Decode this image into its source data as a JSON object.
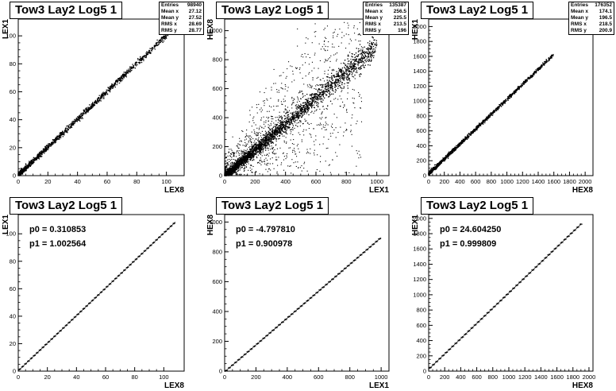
{
  "chart_data": [
    {
      "type": "scatter",
      "title": "Tow3 Lay2 Log5 1",
      "xlabel": "LEX8",
      "ylabel": "LEX1",
      "xlim": [
        0,
        112
      ],
      "ylim": [
        0,
        112
      ],
      "xticks": [
        0,
        20,
        40,
        60,
        80,
        100
      ],
      "yticks": [
        0,
        20,
        40,
        60,
        80,
        100
      ],
      "stats": [
        {
          "label": "Entries",
          "value": "98940"
        },
        {
          "label": "Mean x",
          "value": "27.12"
        },
        {
          "label": "Mean y",
          "value": "27.52"
        },
        {
          "label": "RMS x",
          "value": "28.69"
        },
        {
          "label": "RMS y",
          "value": "28.77"
        }
      ],
      "trend": {
        "slope": 1.0,
        "intercept": 0.3,
        "xmin": 0,
        "xmax": 108,
        "spread": 1.0
      },
      "outliers": 0
    },
    {
      "type": "scatter",
      "title": "Tow3 Lay2 Log5 1",
      "xlabel": "LEX1",
      "ylabel": "HEX8",
      "xlim": [
        0,
        1080
      ],
      "ylim": [
        0,
        1080
      ],
      "xticks": [
        0,
        200,
        400,
        600,
        800,
        1000
      ],
      "yticks": [
        0,
        200,
        400,
        600,
        800,
        1000
      ],
      "stats": [
        {
          "label": "Entries",
          "value": "135387"
        },
        {
          "label": "Mean x",
          "value": "256.5"
        },
        {
          "label": "Mean y",
          "value": "225.5"
        },
        {
          "label": "RMS x",
          "value": "213.5"
        },
        {
          "label": "RMS y",
          "value": "196"
        }
      ],
      "trend": {
        "slope": 0.9,
        "intercept": -4.8,
        "xmin": 0,
        "xmax": 1000,
        "spread": 28
      },
      "outliers": 1
    },
    {
      "type": "scatter",
      "title": "Tow3 Lay2 Log5 1",
      "xlabel": "HEX8",
      "ylabel": "HEX1",
      "xlim": [
        0,
        2100
      ],
      "ylim": [
        0,
        2100
      ],
      "xticks": [
        0,
        200,
        400,
        600,
        800,
        1000,
        1200,
        1400,
        1600,
        1800,
        2000
      ],
      "yticks": [
        0,
        200,
        400,
        600,
        800,
        1000,
        1200,
        1400,
        1600,
        1800,
        2000
      ],
      "stats": [
        {
          "label": "Entries",
          "value": "176352"
        },
        {
          "label": "Mean x",
          "value": "174.1"
        },
        {
          "label": "Mean y",
          "value": "196.5"
        },
        {
          "label": "RMS x",
          "value": "218.5"
        },
        {
          "label": "RMS y",
          "value": "200.9"
        }
      ],
      "trend": {
        "slope": 1.0,
        "intercept": 24.6,
        "xmin": 0,
        "xmax": 1600,
        "spread": 12
      },
      "outliers": 0
    },
    {
      "type": "line",
      "title": "Tow3 Lay2 Log5 1",
      "xlabel": "LEX8",
      "ylabel": "LEX1",
      "xlim": [
        0,
        114
      ],
      "ylim": [
        0,
        114
      ],
      "xticks": [
        0,
        20,
        40,
        60,
        80,
        100
      ],
      "yticks": [
        0,
        20,
        40,
        60,
        80,
        100
      ],
      "fit": [
        {
          "label": "p0 = 0.310853"
        },
        {
          "label": "p1 = 1.002564"
        }
      ],
      "profile": {
        "p0": 0.310853,
        "p1": 1.002564,
        "xmin": 0,
        "xmax": 108,
        "step": 2
      }
    },
    {
      "type": "line",
      "title": "Tow3 Lay2 Log5 1",
      "xlabel": "LEX1",
      "ylabel": "HEX8",
      "xlim": [
        0,
        1050
      ],
      "ylim": [
        0,
        1050
      ],
      "xticks": [
        0,
        200,
        400,
        600,
        800,
        1000
      ],
      "yticks": [
        0,
        200,
        400,
        600,
        800,
        1000
      ],
      "fit": [
        {
          "label": "p0 = -4.797810"
        },
        {
          "label": "p1 = 0.900978"
        }
      ],
      "profile": {
        "p0": -4.79781,
        "p1": 0.900978,
        "xmin": 0,
        "xmax": 1000,
        "step": 20
      }
    },
    {
      "type": "line",
      "title": "Tow3 Lay2 Log5 1",
      "xlabel": "HEX8",
      "ylabel": "HEX1",
      "xlim": [
        0,
        2050
      ],
      "ylim": [
        0,
        2050
      ],
      "xticks": [
        0,
        200,
        400,
        600,
        800,
        1000,
        1200,
        1400,
        1600,
        1800,
        2000
      ],
      "yticks": [
        0,
        200,
        400,
        600,
        800,
        1000,
        1200,
        1400,
        1600,
        1800,
        2000
      ],
      "fit": [
        {
          "label": "p0 = 24.604250"
        },
        {
          "label": "p1 = 0.999809"
        }
      ],
      "profile": {
        "p0": 24.60425,
        "p1": 0.999809,
        "xmin": 0,
        "xmax": 1900,
        "step": 40
      }
    }
  ]
}
